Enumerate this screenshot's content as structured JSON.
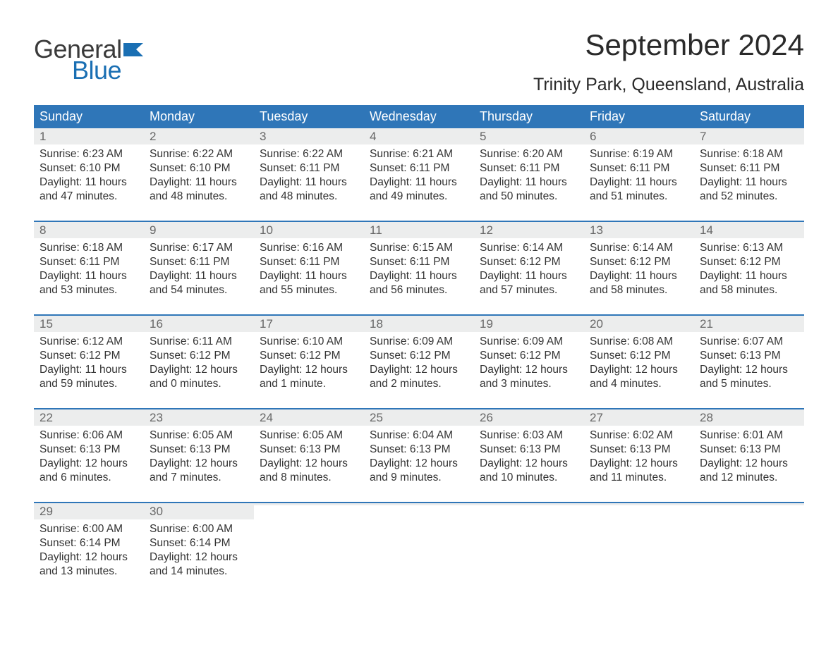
{
  "brand": {
    "word1": "General",
    "word2": "Blue",
    "flag_color": "#1a6fb3",
    "text_dark": "#3a3a3a"
  },
  "title": "September 2024",
  "location": "Trinity Park, Queensland, Australia",
  "calendar": {
    "header_bg": "#2f76b8",
    "header_fg": "#ffffff",
    "week_border": "#2f76b8",
    "daynum_bg": "#eceded",
    "body_bg": "#ffffff",
    "text_color": "#333333",
    "font_family": "Arial",
    "header_fontsize": 18,
    "daynum_fontsize": 17,
    "body_fontsize": 15.5,
    "day_headers": [
      "Sunday",
      "Monday",
      "Tuesday",
      "Wednesday",
      "Thursday",
      "Friday",
      "Saturday"
    ],
    "weeks": [
      [
        {
          "n": "1",
          "sunrise": "6:23 AM",
          "sunset": "6:10 PM",
          "dl1": "11 hours",
          "dl2": "47 minutes"
        },
        {
          "n": "2",
          "sunrise": "6:22 AM",
          "sunset": "6:10 PM",
          "dl1": "11 hours",
          "dl2": "48 minutes"
        },
        {
          "n": "3",
          "sunrise": "6:22 AM",
          "sunset": "6:11 PM",
          "dl1": "11 hours",
          "dl2": "48 minutes"
        },
        {
          "n": "4",
          "sunrise": "6:21 AM",
          "sunset": "6:11 PM",
          "dl1": "11 hours",
          "dl2": "49 minutes"
        },
        {
          "n": "5",
          "sunrise": "6:20 AM",
          "sunset": "6:11 PM",
          "dl1": "11 hours",
          "dl2": "50 minutes"
        },
        {
          "n": "6",
          "sunrise": "6:19 AM",
          "sunset": "6:11 PM",
          "dl1": "11 hours",
          "dl2": "51 minutes"
        },
        {
          "n": "7",
          "sunrise": "6:18 AM",
          "sunset": "6:11 PM",
          "dl1": "11 hours",
          "dl2": "52 minutes"
        }
      ],
      [
        {
          "n": "8",
          "sunrise": "6:18 AM",
          "sunset": "6:11 PM",
          "dl1": "11 hours",
          "dl2": "53 minutes"
        },
        {
          "n": "9",
          "sunrise": "6:17 AM",
          "sunset": "6:11 PM",
          "dl1": "11 hours",
          "dl2": "54 minutes"
        },
        {
          "n": "10",
          "sunrise": "6:16 AM",
          "sunset": "6:11 PM",
          "dl1": "11 hours",
          "dl2": "55 minutes"
        },
        {
          "n": "11",
          "sunrise": "6:15 AM",
          "sunset": "6:11 PM",
          "dl1": "11 hours",
          "dl2": "56 minutes"
        },
        {
          "n": "12",
          "sunrise": "6:14 AM",
          "sunset": "6:12 PM",
          "dl1": "11 hours",
          "dl2": "57 minutes"
        },
        {
          "n": "13",
          "sunrise": "6:14 AM",
          "sunset": "6:12 PM",
          "dl1": "11 hours",
          "dl2": "58 minutes"
        },
        {
          "n": "14",
          "sunrise": "6:13 AM",
          "sunset": "6:12 PM",
          "dl1": "11 hours",
          "dl2": "58 minutes"
        }
      ],
      [
        {
          "n": "15",
          "sunrise": "6:12 AM",
          "sunset": "6:12 PM",
          "dl1": "11 hours",
          "dl2": "59 minutes"
        },
        {
          "n": "16",
          "sunrise": "6:11 AM",
          "sunset": "6:12 PM",
          "dl1": "12 hours",
          "dl2": "0 minutes"
        },
        {
          "n": "17",
          "sunrise": "6:10 AM",
          "sunset": "6:12 PM",
          "dl1": "12 hours",
          "dl2": "1 minute"
        },
        {
          "n": "18",
          "sunrise": "6:09 AM",
          "sunset": "6:12 PM",
          "dl1": "12 hours",
          "dl2": "2 minutes"
        },
        {
          "n": "19",
          "sunrise": "6:09 AM",
          "sunset": "6:12 PM",
          "dl1": "12 hours",
          "dl2": "3 minutes"
        },
        {
          "n": "20",
          "sunrise": "6:08 AM",
          "sunset": "6:12 PM",
          "dl1": "12 hours",
          "dl2": "4 minutes"
        },
        {
          "n": "21",
          "sunrise": "6:07 AM",
          "sunset": "6:13 PM",
          "dl1": "12 hours",
          "dl2": "5 minutes"
        }
      ],
      [
        {
          "n": "22",
          "sunrise": "6:06 AM",
          "sunset": "6:13 PM",
          "dl1": "12 hours",
          "dl2": "6 minutes"
        },
        {
          "n": "23",
          "sunrise": "6:05 AM",
          "sunset": "6:13 PM",
          "dl1": "12 hours",
          "dl2": "7 minutes"
        },
        {
          "n": "24",
          "sunrise": "6:05 AM",
          "sunset": "6:13 PM",
          "dl1": "12 hours",
          "dl2": "8 minutes"
        },
        {
          "n": "25",
          "sunrise": "6:04 AM",
          "sunset": "6:13 PM",
          "dl1": "12 hours",
          "dl2": "9 minutes"
        },
        {
          "n": "26",
          "sunrise": "6:03 AM",
          "sunset": "6:13 PM",
          "dl1": "12 hours",
          "dl2": "10 minutes"
        },
        {
          "n": "27",
          "sunrise": "6:02 AM",
          "sunset": "6:13 PM",
          "dl1": "12 hours",
          "dl2": "11 minutes"
        },
        {
          "n": "28",
          "sunrise": "6:01 AM",
          "sunset": "6:13 PM",
          "dl1": "12 hours",
          "dl2": "12 minutes"
        }
      ],
      [
        {
          "n": "29",
          "sunrise": "6:00 AM",
          "sunset": "6:14 PM",
          "dl1": "12 hours",
          "dl2": "13 minutes"
        },
        {
          "n": "30",
          "sunrise": "6:00 AM",
          "sunset": "6:14 PM",
          "dl1": "12 hours",
          "dl2": "14 minutes"
        },
        {
          "empty": true
        },
        {
          "empty": true
        },
        {
          "empty": true
        },
        {
          "empty": true
        },
        {
          "empty": true
        }
      ]
    ],
    "labels": {
      "sunrise": "Sunrise: ",
      "sunset": "Sunset: ",
      "daylight": "Daylight: ",
      "and": "and "
    }
  }
}
